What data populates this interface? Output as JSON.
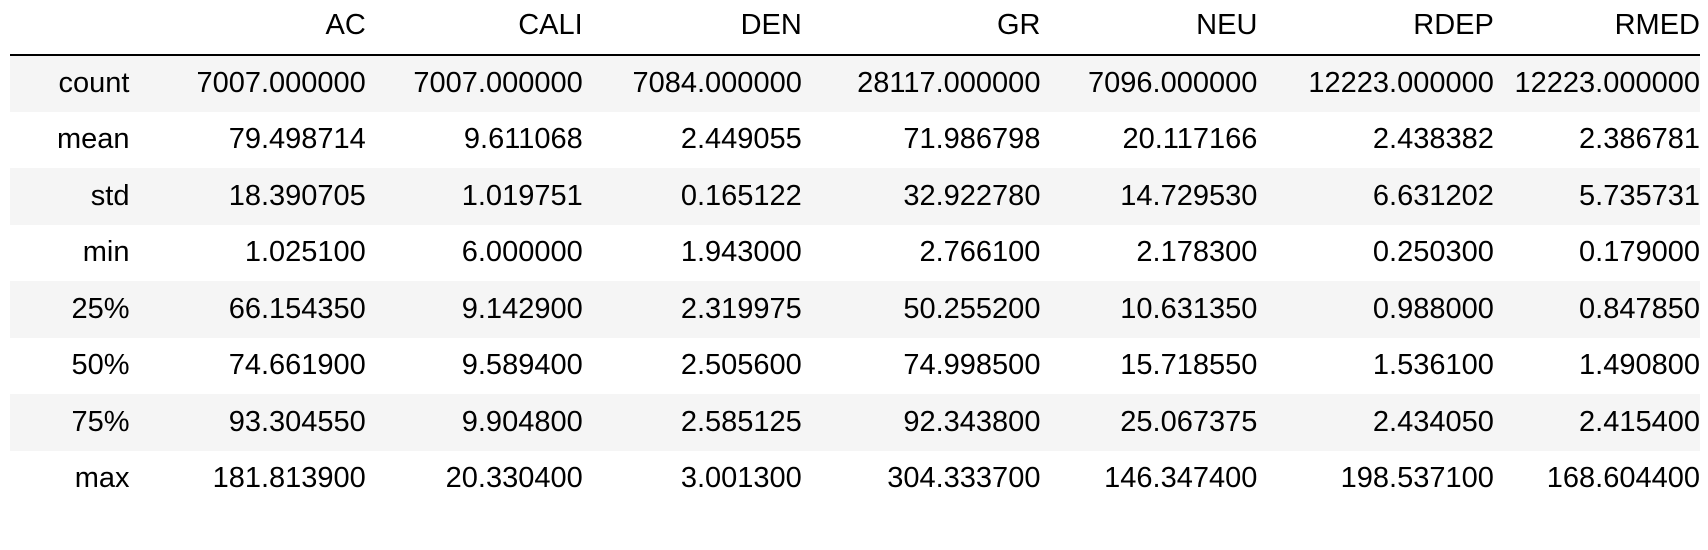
{
  "table": {
    "index_header": "",
    "columns": [
      "AC",
      "CALI",
      "DEN",
      "GR",
      "NEU",
      "RDEP",
      "RMED"
    ],
    "rows": [
      {
        "label": "count",
        "values": [
          "7007.000000",
          "7007.000000",
          "7084.000000",
          "28117.000000",
          "7096.000000",
          "12223.000000",
          "12223.000000"
        ]
      },
      {
        "label": "mean",
        "values": [
          "79.498714",
          "9.611068",
          "2.449055",
          "71.986798",
          "20.117166",
          "2.438382",
          "2.386781"
        ]
      },
      {
        "label": "std",
        "values": [
          "18.390705",
          "1.019751",
          "0.165122",
          "32.922780",
          "14.729530",
          "6.631202",
          "5.735731"
        ]
      },
      {
        "label": "min",
        "values": [
          "1.025100",
          "6.000000",
          "1.943000",
          "2.766100",
          "2.178300",
          "0.250300",
          "0.179000"
        ]
      },
      {
        "label": "25%",
        "values": [
          "66.154350",
          "9.142900",
          "2.319975",
          "50.255200",
          "10.631350",
          "0.988000",
          "0.847850"
        ]
      },
      {
        "label": "50%",
        "values": [
          "74.661900",
          "9.589400",
          "2.505600",
          "74.998500",
          "15.718550",
          "1.536100",
          "1.490800"
        ]
      },
      {
        "label": "75%",
        "values": [
          "93.304550",
          "9.904800",
          "2.585125",
          "92.343800",
          "25.067375",
          "2.434050",
          "2.415400"
        ]
      },
      {
        "label": "max",
        "values": [
          "181.813900",
          "20.330400",
          "3.001300",
          "304.333700",
          "146.347400",
          "198.537100",
          "168.604400"
        ]
      }
    ]
  }
}
